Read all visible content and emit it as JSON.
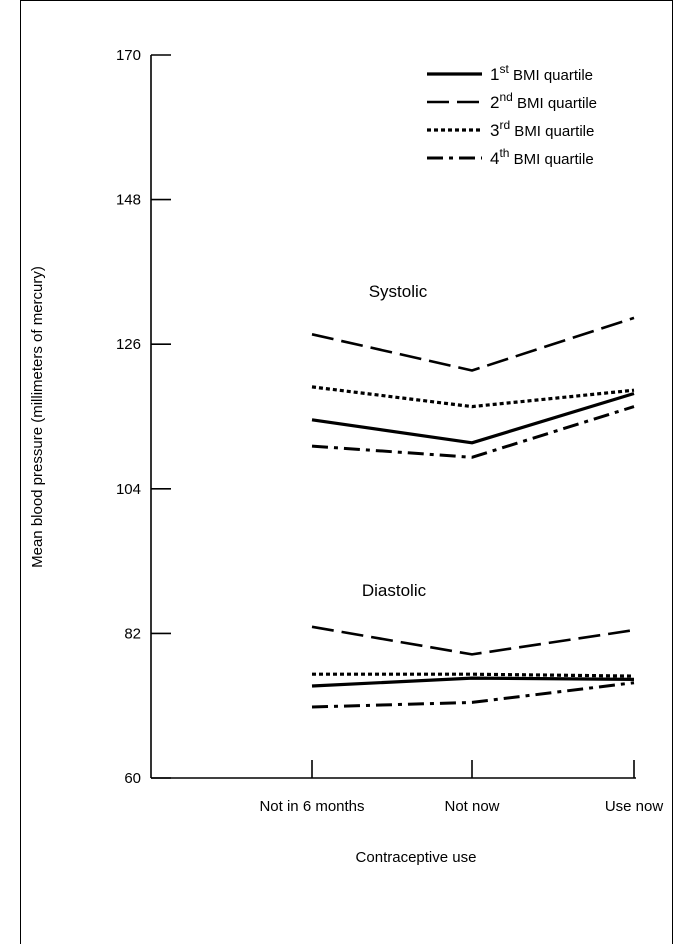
{
  "chart_data": {
    "type": "line",
    "xlabel": "Contraceptive use",
    "ylabel": "Mean blood pressure (millimeters of mercury)",
    "categories": [
      "Not in 6 months",
      "Not now",
      "Use now"
    ],
    "ylim": [
      60,
      170
    ],
    "yticks": [
      60,
      82,
      104,
      126,
      148,
      170
    ],
    "annotations": [
      "Systolic",
      "Diastolic"
    ],
    "legend_position": "top-right",
    "series": [
      {
        "id": "q1",
        "ordinal": "1",
        "suffix": "st",
        "label": " BMI quartile",
        "style": "solid",
        "group": "Systolic",
        "values": [
          114.5,
          111.0,
          118.5
        ]
      },
      {
        "id": "q2",
        "ordinal": "2",
        "suffix": "nd",
        "label": " BMI quartile",
        "style": "dashed",
        "group": "Systolic",
        "values": [
          127.5,
          122.0,
          130.0
        ]
      },
      {
        "id": "q3",
        "ordinal": "3",
        "suffix": "rd",
        "label": " BMI quartile",
        "style": "dotted",
        "group": "Systolic",
        "values": [
          119.5,
          116.5,
          119.0
        ]
      },
      {
        "id": "q4",
        "ordinal": "4",
        "suffix": "th",
        "label": " BMI quartile",
        "style": "dashdot",
        "group": "Systolic",
        "values": [
          110.5,
          108.8,
          116.5
        ]
      },
      {
        "id": "q1",
        "style": "solid",
        "group": "Diastolic",
        "values": [
          74.0,
          75.2,
          75.0
        ]
      },
      {
        "id": "q2",
        "style": "dashed",
        "group": "Diastolic",
        "values": [
          83.0,
          78.8,
          82.5
        ]
      },
      {
        "id": "q3",
        "style": "dotted",
        "group": "Diastolic",
        "values": [
          75.8,
          75.8,
          75.5
        ]
      },
      {
        "id": "q4",
        "style": "dashdot",
        "group": "Diastolic",
        "values": [
          70.8,
          71.5,
          74.5
        ]
      }
    ]
  }
}
